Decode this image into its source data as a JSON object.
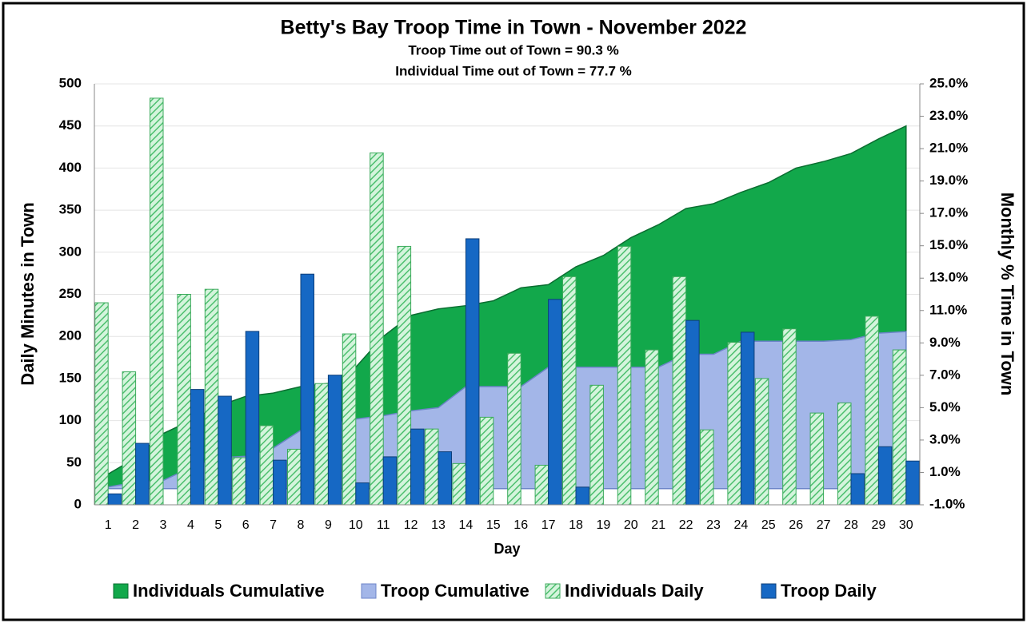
{
  "chart_data": {
    "type": "combo",
    "title": "Betty's Bay Troop Time in Town - November 2022",
    "subtitles": [
      "Troop Time out of Town =   90.3 %",
      "Individual Time out of Town =  77.7 %"
    ],
    "x_label": "Day",
    "y_label": "Daily Minutes in Town",
    "y2_label": "Monthly % Time in Town",
    "categories": [
      1,
      2,
      3,
      4,
      5,
      6,
      7,
      8,
      9,
      10,
      11,
      12,
      13,
      14,
      15,
      16,
      17,
      18,
      19,
      20,
      21,
      22,
      23,
      24,
      25,
      26,
      27,
      28,
      29,
      30
    ],
    "ylim": [
      0,
      500
    ],
    "yticks": [
      0,
      50,
      100,
      150,
      200,
      250,
      300,
      350,
      400,
      450,
      500
    ],
    "y2lim": [
      -1.0,
      25.0
    ],
    "y2ticks": [
      {
        "value": -1.0,
        "label": "-1.0%"
      },
      {
        "value": 1.0,
        "label": "1.0%"
      },
      {
        "value": 3.0,
        "label": "3.0%"
      },
      {
        "value": 5.0,
        "label": "5.0%"
      },
      {
        "value": 7.0,
        "label": "7.0%"
      },
      {
        "value": 9.0,
        "label": "9.0%"
      },
      {
        "value": 11.0,
        "label": "11.0%"
      },
      {
        "value": 13.0,
        "label": "13.0%"
      },
      {
        "value": 15.0,
        "label": "15.0%"
      },
      {
        "value": 17.0,
        "label": "17.0%"
      },
      {
        "value": 19.0,
        "label": "19.0%"
      },
      {
        "value": 21.0,
        "label": "21.0%"
      },
      {
        "value": 23.0,
        "label": "23.0%"
      },
      {
        "value": 25.0,
        "label": "25.0%"
      }
    ],
    "grid": true,
    "legend": "bottom",
    "series": [
      {
        "name": "Individuals Cumulative",
        "type": "area",
        "axis": "y2",
        "color": "#12a84b",
        "edge": "#0b6e31",
        "values": [
          0.9,
          1.9,
          3.4,
          4.2,
          5.1,
          5.7,
          5.9,
          6.3,
          6.5,
          7.5,
          9.4,
          10.7,
          11.1,
          11.3,
          11.6,
          12.4,
          12.6,
          13.7,
          14.4,
          15.5,
          16.3,
          17.3,
          17.6,
          18.3,
          18.9,
          19.8,
          20.2,
          20.7,
          21.6,
          22.4
        ]
      },
      {
        "name": "Troop Cumulative",
        "type": "area",
        "axis": "y2",
        "color": "#a3b6e8",
        "edge": "#6c84c8",
        "values": [
          0.1,
          0.4,
          0.5,
          1.3,
          1.9,
          2.0,
          2.5,
          3.6,
          4.0,
          4.3,
          4.5,
          4.8,
          5.0,
          6.3,
          6.3,
          6.3,
          7.5,
          7.5,
          7.5,
          7.5,
          7.5,
          8.3,
          8.3,
          9.1,
          9.1,
          9.1,
          9.1,
          9.2,
          9.6,
          9.7
        ]
      },
      {
        "name": "Individuals Daily",
        "type": "bar",
        "color": "#c8f0d2",
        "edge": "#3caa5c",
        "hatch": true,
        "values": [
          240,
          158,
          483,
          250,
          256,
          56,
          94,
          66,
          144,
          203,
          418,
          307,
          90,
          49,
          104,
          180,
          47,
          271,
          142,
          307,
          184,
          271,
          89,
          193,
          150,
          209,
          109,
          121,
          224,
          184
        ]
      },
      {
        "name": "Troop Daily",
        "type": "bar",
        "color": "#1668c4",
        "edge": "#0d3f7a",
        "values": [
          13,
          73,
          0,
          137,
          129,
          206,
          53,
          274,
          154,
          26,
          57,
          90,
          63,
          316,
          0,
          0,
          244,
          21,
          0,
          0,
          0,
          219,
          0,
          205,
          0,
          0,
          0,
          37,
          69,
          52
        ]
      }
    ]
  }
}
